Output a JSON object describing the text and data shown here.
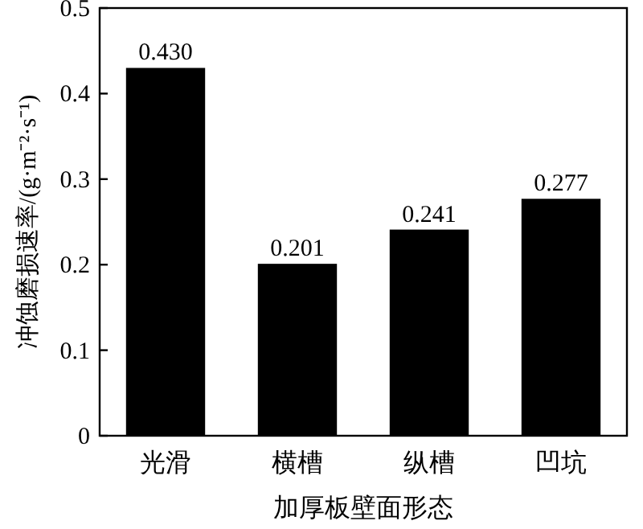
{
  "chart_data": {
    "type": "bar",
    "categories": [
      "光滑",
      "横槽",
      "纵槽",
      "凹坑"
    ],
    "values": [
      0.43,
      0.201,
      0.241,
      0.277
    ],
    "value_labels": [
      "0.430",
      "0.201",
      "0.241",
      "0.277"
    ],
    "color": "#000000",
    "xlabel": "加厚板壁面形态",
    "ylabel": "冲蚀磨损速率/(g·m⁻²·s⁻¹)",
    "ylim": [
      0,
      0.5
    ],
    "yticks": [
      0,
      0.1,
      0.2,
      0.3,
      0.4,
      0.5
    ],
    "grid": false
  }
}
